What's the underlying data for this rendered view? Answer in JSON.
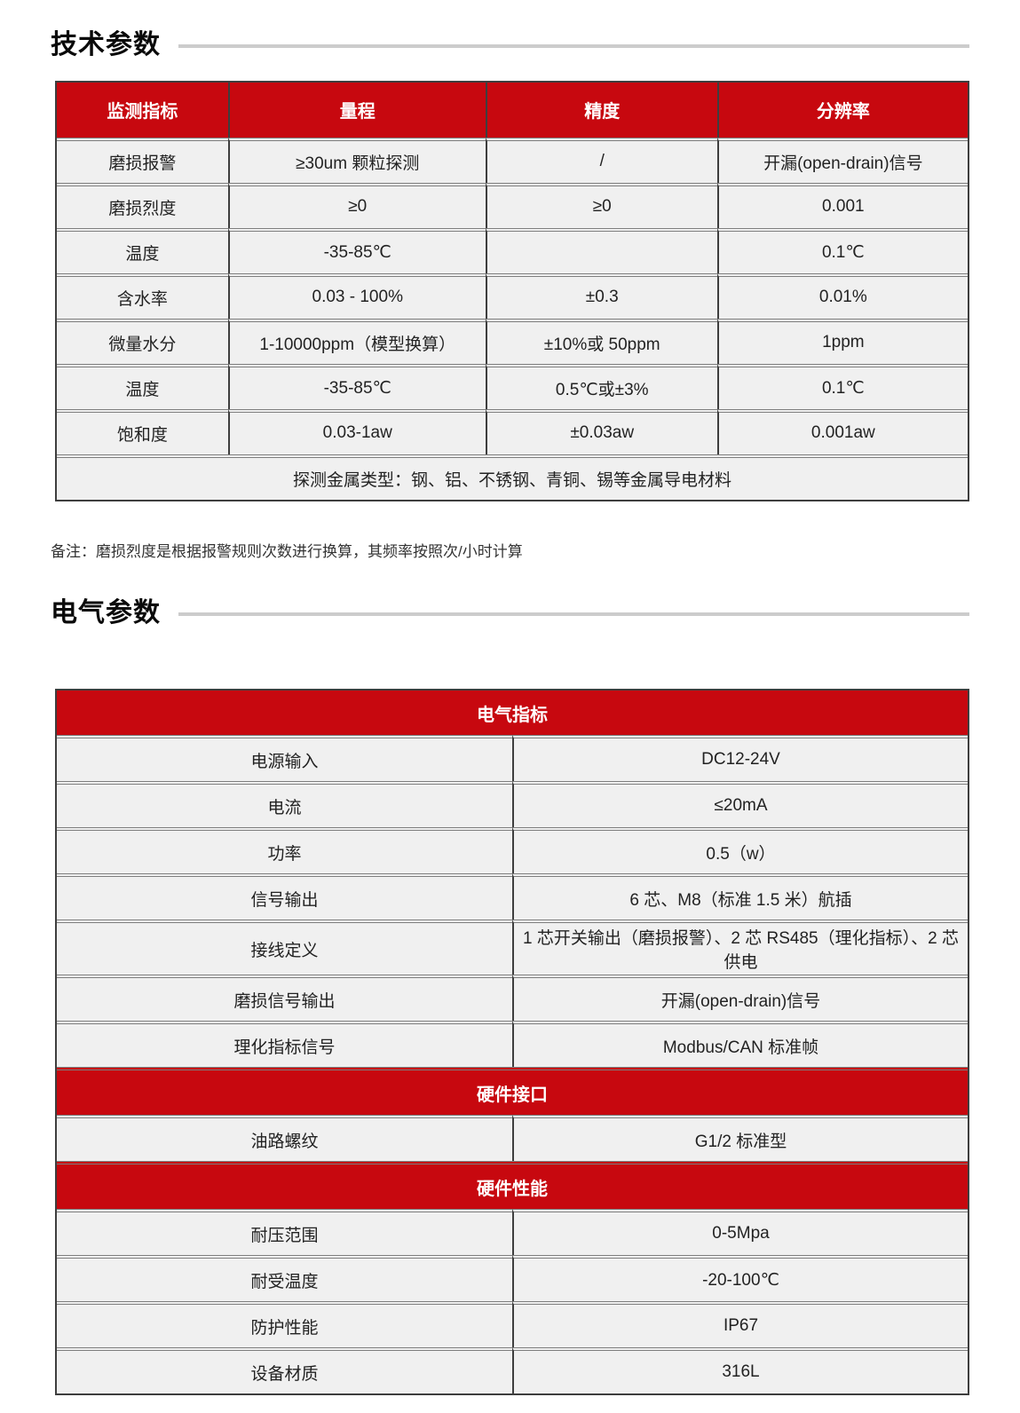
{
  "colors": {
    "accent_red": "#c7080f",
    "cell_bg": "#f0f0f0",
    "border_dark": "#3e3e3e",
    "border_double": "#7e7e7e",
    "heading_line": "#cccccc"
  },
  "tech": {
    "title": "技术参数",
    "headers": [
      "监测指标",
      "量程",
      "精度",
      "分辨率"
    ],
    "rows": [
      [
        "磨损报警",
        "≥30um 颗粒探测",
        "/",
        "开漏(open-drain)信号"
      ],
      [
        "磨损烈度",
        "≥0",
        "≥0",
        "0.001"
      ],
      [
        "温度",
        "-35-85℃",
        "",
        "0.1℃"
      ],
      [
        "含水率",
        "0.03 - 100%",
        "±0.3",
        "0.01%"
      ],
      [
        "微量水分",
        "1-10000ppm（模型换算）",
        "±10%或 50ppm",
        "1ppm"
      ],
      [
        "温度",
        "-35-85℃",
        "0.5℃或±3%",
        "0.1℃"
      ],
      [
        "饱和度",
        "0.03-1aw",
        "±0.03aw",
        "0.001aw"
      ]
    ],
    "footer": "探测金属类型：钢、铝、不锈钢、青铜、锡等金属导电材料",
    "note": "备注：磨损烈度是根据报警规则次数进行换算，其频率按照次/小时计算"
  },
  "elec": {
    "title": "电气参数",
    "table_title": "电气指标",
    "rows1": [
      [
        "电源输入",
        "DC12-24V"
      ],
      [
        "电流",
        "≤20mA"
      ],
      [
        "功率",
        "0.5（w）"
      ],
      [
        "信号输出",
        "6 芯、M8（标准 1.5 米）航插"
      ],
      [
        "接线定义",
        "1 芯开关输出（磨损报警）、2 芯 RS485（理化指标）、2 芯供电"
      ],
      [
        "磨损信号输出",
        "开漏(open-drain)信号"
      ],
      [
        "理化指标信号",
        "Modbus/CAN 标准帧"
      ]
    ],
    "band2": "硬件接口",
    "rows2": [
      [
        "油路螺纹",
        "G1/2 标准型"
      ]
    ],
    "band3": "硬件性能",
    "rows3": [
      [
        "耐压范围",
        "0-5Mpa"
      ],
      [
        "耐受温度",
        "-20-100℃"
      ],
      [
        "防护性能",
        "IP67"
      ],
      [
        "设备材质",
        "316L"
      ]
    ]
  }
}
